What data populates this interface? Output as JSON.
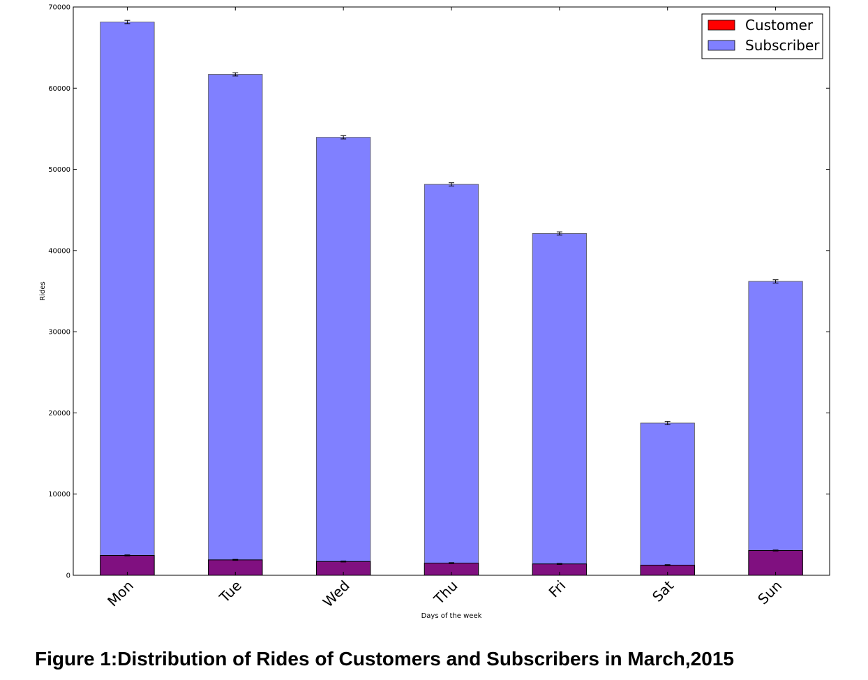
{
  "caption": "Figure 1:Distribution of Rides of Customers and Subscribers in March,2015",
  "colors": {
    "customer": "#ff0000",
    "subscriber": "#8080ff",
    "overlap": "#801080",
    "axis": "#000000"
  },
  "chart_data": {
    "type": "bar",
    "stacked": false,
    "overlaid": true,
    "categories": [
      "Mon",
      "Tue",
      "Wed",
      "Thu",
      "Fri",
      "Sat",
      "Sun"
    ],
    "series": [
      {
        "name": "Customer",
        "values": [
          2450,
          1900,
          1700,
          1500,
          1400,
          1250,
          3050
        ],
        "error": [
          60,
          60,
          60,
          60,
          60,
          60,
          60
        ]
      },
      {
        "name": "Subscriber",
        "values": [
          68150,
          61700,
          53950,
          48150,
          42100,
          18750,
          36200
        ],
        "error": [
          200,
          200,
          200,
          200,
          200,
          200,
          200
        ]
      }
    ],
    "xlabel": "Days of the week",
    "ylabel": "Rides",
    "ylim": [
      0,
      70000
    ],
    "yticks": [
      0,
      10000,
      20000,
      30000,
      40000,
      50000,
      60000,
      70000
    ],
    "grid": false,
    "legend_position": "top-right"
  }
}
